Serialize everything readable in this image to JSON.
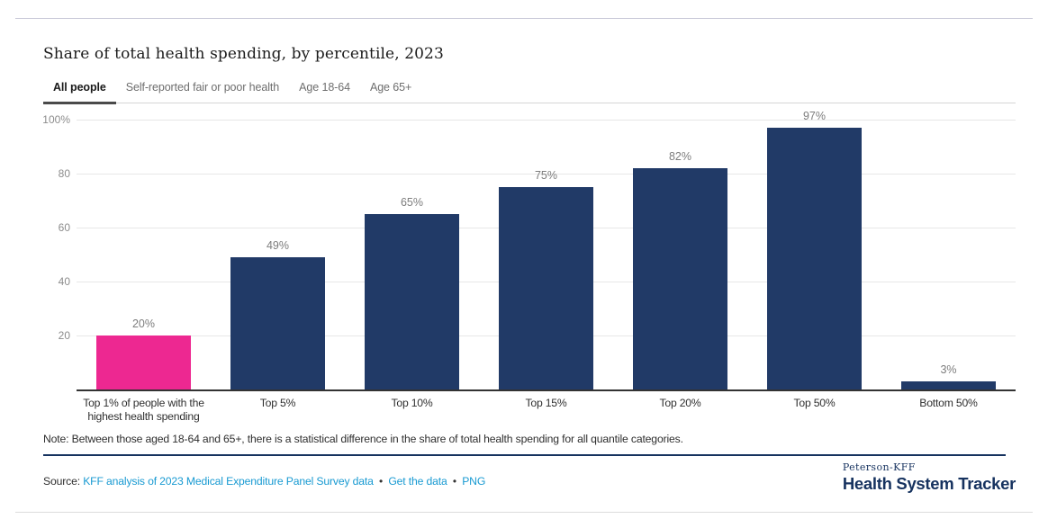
{
  "header": {
    "title": "Share of total health spending, by percentile, 2023"
  },
  "tabs": {
    "items": [
      {
        "label": "All people",
        "active": true
      },
      {
        "label": "Self-reported fair or poor health",
        "active": false
      },
      {
        "label": "Age 18-64",
        "active": false
      },
      {
        "label": "Age 65+",
        "active": false
      }
    ]
  },
  "chart_data": {
    "type": "bar",
    "title": "Share of total health spending, by percentile, 2023",
    "categories": [
      "Top 1% of people with the highest health spending",
      "Top 5%",
      "Top 10%",
      "Top 15%",
      "Top 20%",
      "Top 50%",
      "Bottom 50%"
    ],
    "values": [
      20,
      49,
      65,
      75,
      82,
      97,
      3
    ],
    "value_labels": [
      "20%",
      "49%",
      "65%",
      "75%",
      "82%",
      "97%",
      "3%"
    ],
    "highlight_index": 0,
    "highlight_color": "#ed2891",
    "bar_color": "#213a67",
    "xlabel": "",
    "ylabel": "",
    "ylim": [
      0,
      100
    ],
    "yticks": [
      {
        "value": 100,
        "label": "100%"
      },
      {
        "value": 80,
        "label": "80"
      },
      {
        "value": 60,
        "label": "60"
      },
      {
        "value": 40,
        "label": "40"
      },
      {
        "value": 20,
        "label": "20"
      }
    ],
    "grid": true,
    "legend": false
  },
  "note": "Note: Between those aged 18-64 and 65+, there is a statistical difference in the share of total health spending for all quantile categories.",
  "source": {
    "prefix": "Source:",
    "links": [
      {
        "label": "KFF analysis of 2023 Medical Expenditure Panel Survey data"
      },
      {
        "label": "Get the data"
      },
      {
        "label": "PNG"
      }
    ],
    "bullet": "•"
  },
  "branding": {
    "org": "Peterson-KFF",
    "name": "Health System Tracker"
  },
  "colors": {
    "accent_pink": "#ed2891",
    "navy": "#213a67",
    "brand_navy": "#16325f",
    "link_blue": "#189ad2",
    "grid": "#e7e7e7",
    "axis": "#333333"
  }
}
